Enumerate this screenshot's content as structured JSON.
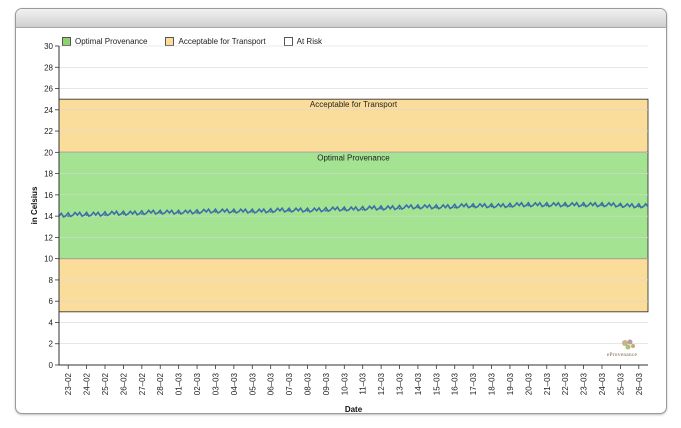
{
  "legend": [
    {
      "label": "Optimal Provenance",
      "color": "#8fd06f"
    },
    {
      "label": "Acceptable for Transport",
      "color": "#fbdd9b"
    },
    {
      "label": "At Risk",
      "color": "#ffffff"
    }
  ],
  "logo": {
    "text": "eProvenance"
  },
  "chart_data": {
    "type": "line",
    "xlabel": "Date",
    "ylabel": "in Celsius",
    "ylim": [
      0,
      30
    ],
    "yticks": [
      0,
      2,
      4,
      6,
      8,
      10,
      12,
      14,
      16,
      18,
      20,
      22,
      24,
      26,
      28,
      30
    ],
    "grid": true,
    "legend_position": "top-left",
    "bands": [
      {
        "name": "Acceptable for Transport",
        "from": 20,
        "to": 25,
        "color": "#fbdd9b",
        "label": "Acceptable for Transport"
      },
      {
        "name": "Optimal Provenance",
        "from": 10,
        "to": 20,
        "color": "#a4e391",
        "label": "Optimal Provenance"
      },
      {
        "name": "Acceptable for Transport",
        "from": 5,
        "to": 10,
        "color": "#fbdd9b",
        "label": ""
      }
    ],
    "categories": [
      "23–02",
      "24–02",
      "25–02",
      "26–02",
      "27–02",
      "28–02",
      "01–03",
      "02–03",
      "03–03",
      "04–03",
      "05–03",
      "06–03",
      "07–03",
      "08–03",
      "09–03",
      "10–03",
      "11–03",
      "12–03",
      "13–03",
      "14–03",
      "15–03",
      "16–03",
      "17–03",
      "18–03",
      "19–03",
      "20–03",
      "21–03",
      "22–03",
      "23–03",
      "24–03",
      "25–03",
      "26–03"
    ],
    "series": [
      {
        "color": "#3a6fa8",
        "values": [
          14.0,
          14.1,
          14.1,
          14.2,
          14.2,
          14.3,
          14.3,
          14.3,
          14.4,
          14.4,
          14.4,
          14.4,
          14.5,
          14.5,
          14.5,
          14.6,
          14.6,
          14.7,
          14.7,
          14.8,
          14.8,
          14.8,
          14.9,
          14.9,
          14.9,
          15.0,
          15.0,
          15.0,
          15.0,
          15.0,
          15.0,
          14.9
        ]
      }
    ]
  }
}
